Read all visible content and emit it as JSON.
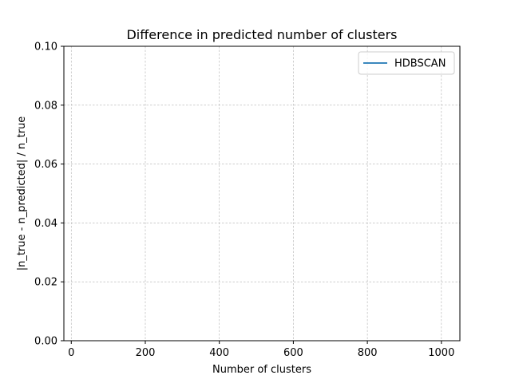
{
  "chart_data": {
    "type": "line",
    "title": "Difference in predicted number of clusters",
    "xlabel": "Number of clusters",
    "ylabel": "|n_true - n_predicted| / n_true",
    "xlim": [
      -20,
      1050
    ],
    "ylim": [
      0,
      0.1
    ],
    "xticks": [
      0,
      200,
      400,
      600,
      800,
      1000
    ],
    "xtick_labels": [
      "0",
      "200",
      "400",
      "600",
      "800",
      "1000"
    ],
    "yticks": [
      0.0,
      0.02,
      0.04,
      0.06,
      0.08,
      0.1
    ],
    "ytick_labels": [
      "0.00",
      "0.02",
      "0.04",
      "0.06",
      "0.08",
      "0.10"
    ],
    "grid": true,
    "legend_position": "top-right",
    "series": [
      {
        "name": "HDBSCAN",
        "color": "#1f77b4",
        "x": [],
        "y": []
      }
    ]
  }
}
